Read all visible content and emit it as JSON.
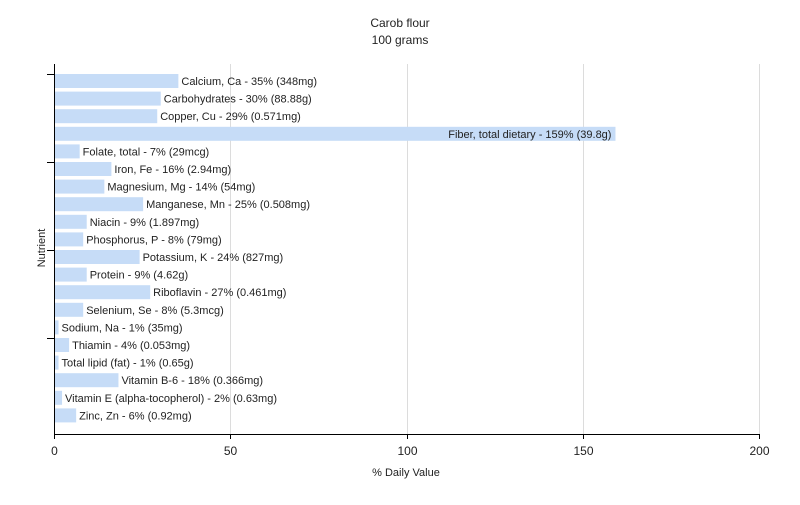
{
  "chart_data": {
    "type": "bar",
    "orientation": "horizontal",
    "title": "Carob flour",
    "subtitle": "100 grams",
    "xlabel": "% Daily Value",
    "ylabel": "Nutrient",
    "xlim": [
      0,
      200
    ],
    "xticks": [
      "0",
      "50",
      "100",
      "150",
      "200"
    ],
    "grid": true,
    "bar_color": "#c6dcf7",
    "categories": [
      "Calcium, Ca",
      "Carbohydrates",
      "Copper, Cu",
      "Fiber, total dietary",
      "Folate, total",
      "Iron, Fe",
      "Magnesium, Mg",
      "Manganese, Mn",
      "Niacin",
      "Phosphorus, P",
      "Potassium, K",
      "Protein",
      "Riboflavin",
      "Selenium, Se",
      "Sodium, Na",
      "Thiamin",
      "Total lipid (fat)",
      "Vitamin B-6",
      "Vitamin E (alpha-tocopherol)",
      "Zinc, Zn"
    ],
    "values": [
      35,
      30,
      29,
      159,
      7,
      16,
      14,
      25,
      9,
      8,
      24,
      9,
      27,
      8,
      1,
      4,
      1,
      18,
      2,
      6
    ],
    "labels": [
      "Calcium, Ca - 35% (348mg)",
      "Carbohydrates - 30% (88.88g)",
      "Copper, Cu - 29% (0.571mg)",
      "Fiber, total dietary - 159% (39.8g)",
      "Folate, total - 7% (29mcg)",
      "Iron, Fe - 16% (2.94mg)",
      "Magnesium, Mg - 14% (54mg)",
      "Manganese, Mn - 25% (0.508mg)",
      "Niacin - 9% (1.897mg)",
      "Phosphorus, P - 8% (79mg)",
      "Potassium, K - 24% (827mg)",
      "Protein - 9% (4.62g)",
      "Riboflavin - 27% (0.461mg)",
      "Selenium, Se - 8% (5.3mcg)",
      "Sodium, Na - 1% (35mg)",
      "Thiamin - 4% (0.053mg)",
      "Total lipid (fat) - 1% (0.65g)",
      "Vitamin B-6 - 18% (0.366mg)",
      "Vitamin E (alpha-tocopherol) - 2% (0.63mg)",
      "Zinc, Zn - 6% (0.92mg)"
    ]
  }
}
